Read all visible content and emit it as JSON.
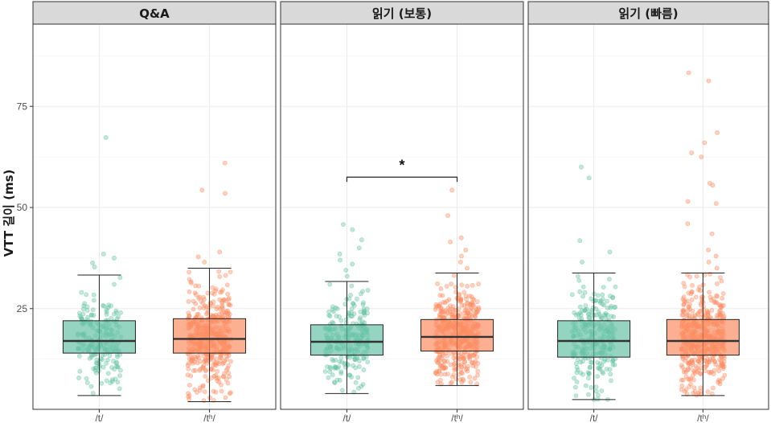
{
  "chart_data": {
    "type": "box",
    "ylabel": "VTT 길이 (ms)",
    "yticks": [
      25,
      50,
      75
    ],
    "ylim": [
      0,
      95
    ],
    "categories": [
      "/t/",
      "/tʰ/"
    ],
    "colors": {
      "/t/": "#66c2a5",
      "/tʰ/": "#fc8d62"
    },
    "panels": [
      {
        "strip": "Q&A",
        "boxes": [
          {
            "category": "/t/",
            "whisker_low": 3.5,
            "q1": 14,
            "median": 17,
            "q3": 22,
            "whisker_high": 33.3,
            "outliers": [
              35.3,
              36.3,
              37.5,
              38.5,
              67.3
            ],
            "n": 200,
            "jitter_range": [
              4,
              33
            ]
          },
          {
            "category": "/tʰ/",
            "whisker_low": 2,
            "q1": 14,
            "median": 17.5,
            "q3": 22.5,
            "whisker_high": 35,
            "outliers": [
              36.5,
              37.8,
              39,
              53.5,
              54.3,
              61
            ],
            "n": 430,
            "jitter_range": [
              2,
              35
            ]
          }
        ],
        "significance": null
      },
      {
        "strip": "읽기 (보통)",
        "boxes": [
          {
            "category": "/t/",
            "whisker_low": 4,
            "q1": 13.5,
            "median": 16.8,
            "q3": 21,
            "whisker_high": 31.7,
            "outliers": [
              33,
              34.5,
              36,
              37,
              38.5,
              40,
              42,
              44.5,
              45.8
            ],
            "n": 230,
            "jitter_range": [
              4,
              31.7
            ]
          },
          {
            "category": "/tʰ/",
            "whisker_low": 6,
            "q1": 14.5,
            "median": 18,
            "q3": 22.3,
            "whisker_high": 33.8,
            "outliers": [
              35,
              36.5,
              38,
              39.5,
              41.5,
              42.5,
              48,
              54.3
            ],
            "n": 450,
            "jitter_range": [
              6,
              33.8
            ]
          }
        ],
        "significance": {
          "label": "*",
          "y": 57.5
        }
      },
      {
        "strip": "읽기 (빠름)",
        "boxes": [
          {
            "category": "/t/",
            "whisker_low": 2.5,
            "q1": 13,
            "median": 17,
            "q3": 22,
            "whisker_high": 33.8,
            "outliers": [
              36.5,
              39,
              41.8,
              57.3,
              60
            ],
            "n": 250,
            "jitter_range": [
              2.5,
              33.8
            ]
          },
          {
            "category": "/tʰ/",
            "whisker_low": 3.5,
            "q1": 13.5,
            "median": 17,
            "q3": 22.3,
            "whisker_high": 33.8,
            "outliers": [
              35,
              36.5,
              38,
              39.5,
              43.5,
              46,
              51,
              51.5,
              55.5,
              56,
              62.5,
              63.5,
              66,
              68.5,
              81.3,
              83.3
            ],
            "n": 470,
            "jitter_range": [
              3.5,
              33.8
            ]
          }
        ],
        "significance": null
      }
    ]
  }
}
